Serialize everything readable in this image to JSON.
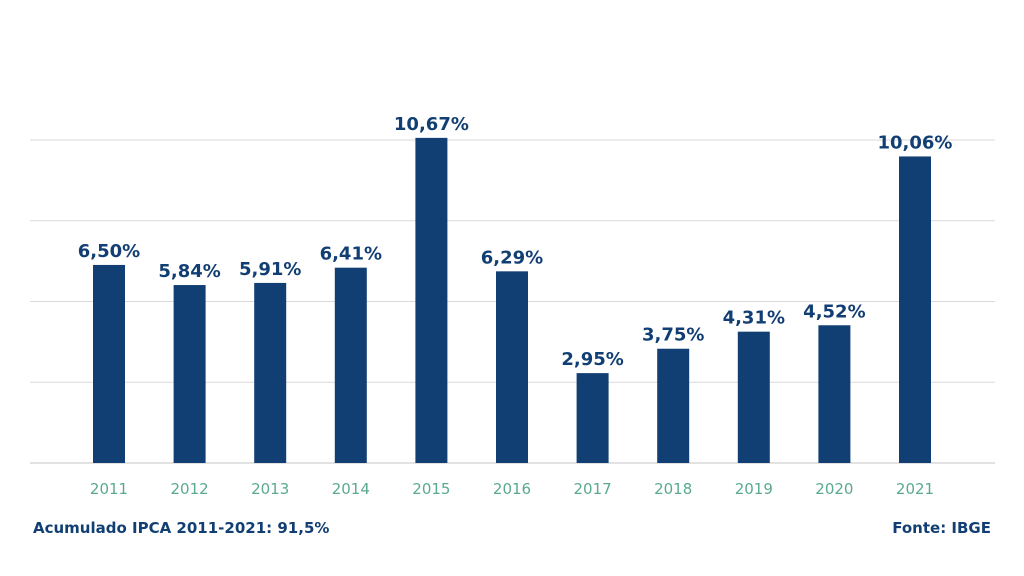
{
  "colors": {
    "bar": "#123f73",
    "value_label": "#123f73",
    "tick_label": "#5aaa8e",
    "grid": "#d9d9d9",
    "note_text": "#123f73"
  },
  "footer": {
    "accumulated": "Acumulado IPCA 2011-2021: 91,5%",
    "source": "Fonte: IBGE"
  },
  "chart_data": {
    "type": "bar",
    "title": "",
    "xlabel": "",
    "ylabel": "",
    "categories": [
      "2011",
      "2012",
      "2013",
      "2014",
      "2015",
      "2016",
      "2017",
      "2018",
      "2019",
      "2020",
      "2021"
    ],
    "values": [
      6.5,
      5.84,
      5.91,
      6.41,
      10.67,
      6.29,
      2.95,
      3.75,
      4.31,
      4.52,
      10.06
    ],
    "data_labels": [
      "6,50%",
      "5,84%",
      "5,91%",
      "6,41%",
      "10,67%",
      "6,29%",
      "2,95%",
      "3,75%",
      "4,31%",
      "4,52%",
      "10,06%"
    ],
    "ylim": [
      0,
      10.6
    ],
    "grid": true,
    "y_tick_labels_shown": false,
    "legend": "none"
  }
}
